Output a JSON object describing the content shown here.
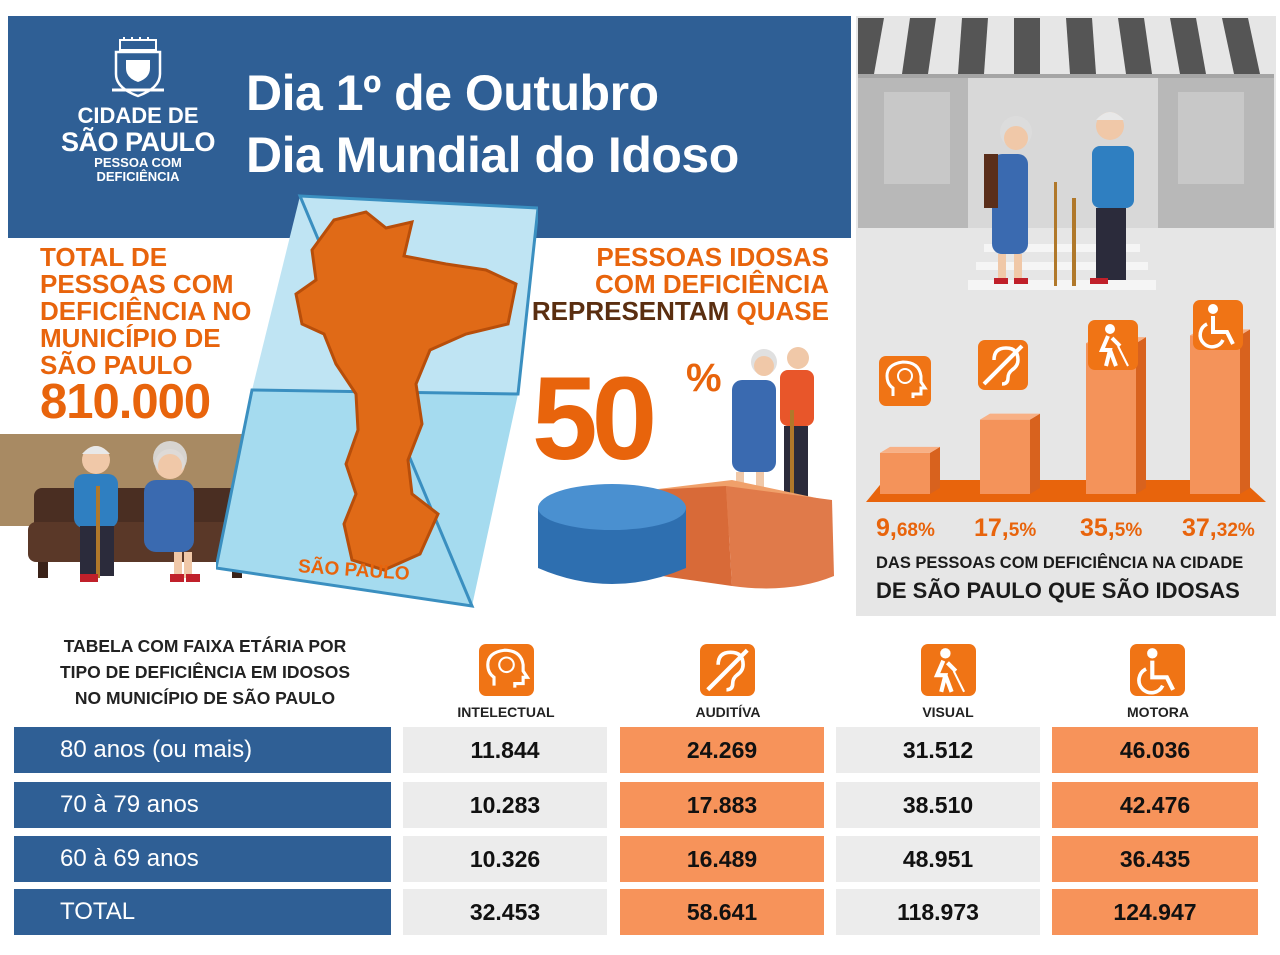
{
  "header": {
    "logo_line1": "CIDADE DE",
    "logo_line2": "SÃO PAULO",
    "logo_line3": "PESSOA COM",
    "logo_line4": "DEFICIÊNCIA",
    "headline_line1": "Dia 1º de Outubro",
    "headline_line2": "Dia Mundial do Idoso"
  },
  "total_block": {
    "lines": [
      "TOTAL DE",
      "PESSOAS COM",
      "DEFICIÊNCIA NO",
      "MUNICÍPIO DE",
      "SÃO PAULO"
    ],
    "value": "810.000"
  },
  "map": {
    "label": "SÃO PAULO"
  },
  "idosas_block": {
    "line1": "PESSOAS IDOSAS",
    "line2": "COM DEFICIÊNCIA",
    "line3_prefix": "REPRESENTAM ",
    "line3_highlight": "QUASE",
    "big_value": "50",
    "percent": "%"
  },
  "bars_block": {
    "values": [
      {
        "int": "9,",
        "dec": "68%",
        "level": 9.68,
        "icon": "intellectual-head-icon"
      },
      {
        "int": "17,",
        "dec": "5%",
        "level": 17.5,
        "icon": "hearing-impaired-icon"
      },
      {
        "int": "35,",
        "dec": "5%",
        "level": 35.5,
        "icon": "blind-walking-cane-icon"
      },
      {
        "int": "37,",
        "dec": "32%",
        "level": 37.32,
        "icon": "wheelchair-icon"
      }
    ],
    "caption_line1": "DAS PESSOAS COM DEFICIÊNCIA NA CIDADE",
    "caption_line2": "DE SÃO PAULO QUE SÃO IDOSAS"
  },
  "table": {
    "title_lines": [
      "TABELA COM FAIXA ETÁRIA POR",
      "TIPO DE DEFICIÊNCIA EM IDOSOS",
      "NO MUNICÍPIO DE SÃO PAULO"
    ],
    "columns": [
      "INTELECTUAL",
      "AUDITÍVA",
      "VISUAL",
      "MOTORA"
    ],
    "rows": [
      {
        "label": "80 anos (ou mais)",
        "values": [
          "11.844",
          "24.269",
          "31.512",
          "46.036"
        ]
      },
      {
        "label": "70 à 79 anos",
        "values": [
          "10.283",
          "17.883",
          "38.510",
          "42.476"
        ]
      },
      {
        "label": "60 à 69 anos",
        "values": [
          "10.326",
          "16.489",
          "48.951",
          "36.435"
        ]
      },
      {
        "label": "TOTAL",
        "values": [
          "32.453",
          "58.641",
          "118.973",
          "124.947"
        ]
      }
    ]
  },
  "colors": {
    "blue": "#2f5f95",
    "orange": "#e8640c",
    "light_orange": "#f7935a",
    "gray": "#ececec"
  }
}
